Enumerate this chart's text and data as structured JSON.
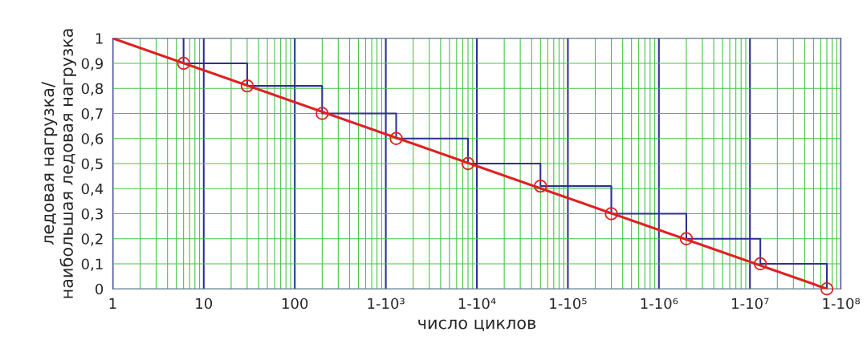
{
  "chart_data": {
    "type": "line",
    "xlabel": "число циклов",
    "ylabel": "ледовая нагрузка/\nнаибольшая ледовая нагрузка",
    "log": "x",
    "grid": true,
    "legend": false,
    "xlim": [
      1,
      100000000
    ],
    "xticks": [
      1,
      10,
      100,
      {
        "value": 1000,
        "label": "1-10³"
      },
      {
        "value": 10000,
        "label": "1-10⁴"
      },
      {
        "value": 100000,
        "label": "1-10⁵"
      },
      {
        "value": 1000000,
        "label": "1-10⁶"
      },
      {
        "value": 10000000,
        "label": "1-10⁷"
      },
      {
        "value": 100000000,
        "label": "1-10⁸"
      }
    ],
    "ylim": [
      0,
      1
    ],
    "yticks": [
      0,
      {
        "value": 0.1,
        "label": "0,1"
      },
      {
        "value": 0.2,
        "label": "0,2"
      },
      {
        "value": 0.3,
        "label": "0,3"
      },
      {
        "value": 0.4,
        "label": "0,4"
      },
      {
        "value": 0.5,
        "label": "0,5"
      },
      {
        "value": 0.6,
        "label": "0,6"
      },
      {
        "value": 0.7,
        "label": "0,7"
      },
      {
        "value": 0.8,
        "label": "0,8"
      },
      {
        "value": 0.9,
        "label": "0,9"
      },
      1
    ],
    "series": [
      {
        "type": "step",
        "color": "#2e3192",
        "marker": "none",
        "x": [
          6,
          6,
          30,
          200,
          1300,
          8000,
          50000,
          300000,
          2000000,
          13000000,
          70000000
        ],
        "values": [
          1,
          0.9,
          0.81,
          0.7,
          0.6,
          0.5,
          0.41,
          0.3,
          0.2,
          0.1,
          0
        ]
      },
      {
        "color": "#e02020",
        "marker": "none",
        "x": [
          1,
          70000000
        ],
        "values": [
          1,
          0
        ]
      },
      {
        "type": "scatter",
        "color": "#e02020",
        "marker": "circle",
        "x": [
          6,
          30,
          200,
          1300,
          8000,
          50000,
          300000,
          2000000,
          13000000,
          70000000
        ],
        "values": [
          0.9,
          0.81,
          0.7,
          0.6,
          0.5,
          0.41,
          0.3,
          0.2,
          0.1,
          0
        ]
      }
    ]
  }
}
